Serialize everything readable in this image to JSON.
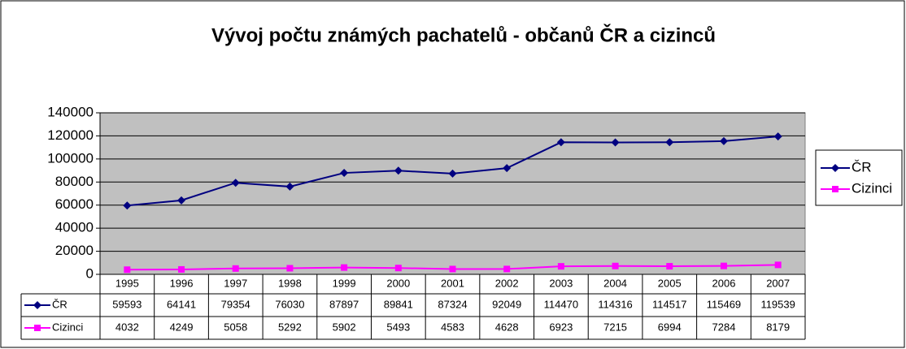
{
  "chart_data": {
    "type": "line",
    "title": "Vývoj počtu známých pachatelů - občanů ČR a cizinců",
    "categories": [
      "1995",
      "1996",
      "1997",
      "1998",
      "1999",
      "2000",
      "2001",
      "2002",
      "2003",
      "2004",
      "2005",
      "2006",
      "2007"
    ],
    "series": [
      {
        "name": "ČR",
        "color": "#000080",
        "marker": "diamond",
        "values": [
          59593,
          64141,
          79354,
          76030,
          87897,
          89841,
          87324,
          92049,
          114470,
          114316,
          114517,
          115469,
          119539
        ]
      },
      {
        "name": "Cizinci",
        "color": "#ff00ff",
        "marker": "square",
        "values": [
          4032,
          4249,
          5058,
          5292,
          5902,
          5493,
          4583,
          4628,
          6923,
          7215,
          6994,
          7284,
          8179
        ]
      }
    ],
    "ylim": [
      0,
      140000
    ],
    "yticks": [
      0,
      20000,
      40000,
      60000,
      80000,
      100000,
      120000,
      140000
    ],
    "grid": true,
    "legend": "right",
    "data_table": true
  }
}
